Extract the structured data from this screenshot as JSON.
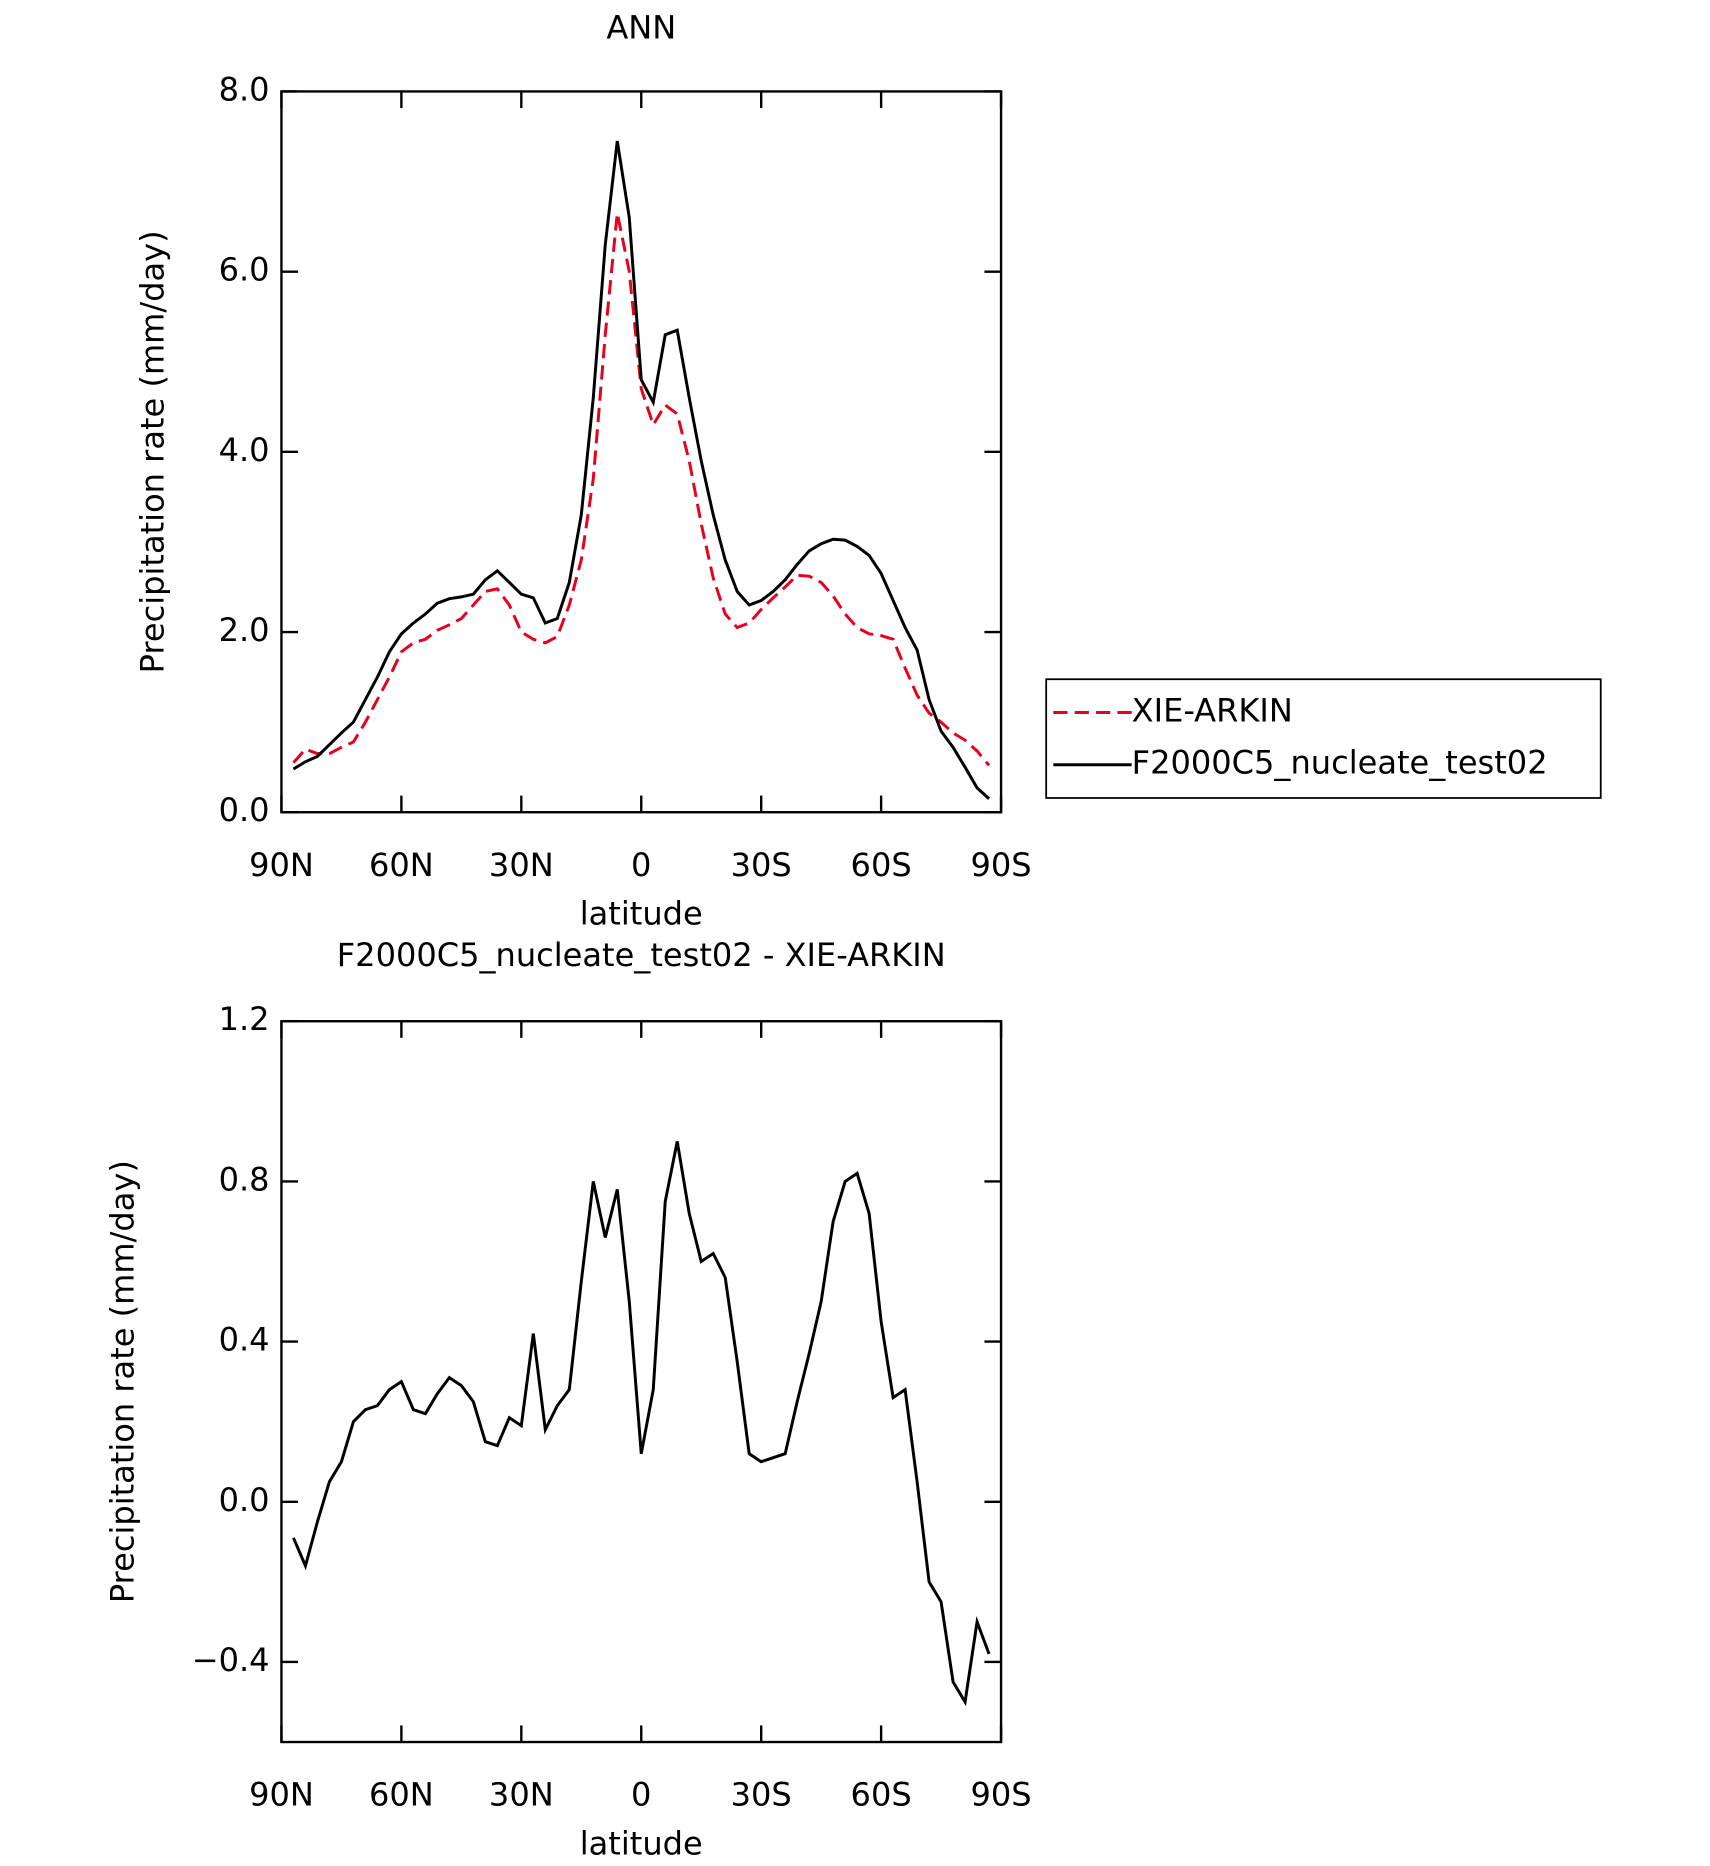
{
  "chart_data": [
    {
      "type": "line",
      "title": "ANN",
      "xlabel": "latitude",
      "ylabel": "Precipitation rate (mm/day)",
      "x": [
        87,
        84,
        81,
        78,
        75,
        72,
        69,
        66,
        63,
        60,
        57,
        54,
        51,
        48,
        45,
        42,
        39,
        36,
        33,
        30,
        27,
        24,
        21,
        18,
        15,
        12,
        9,
        6,
        3,
        0,
        -3,
        -6,
        -9,
        -12,
        -15,
        -18,
        -21,
        -24,
        -27,
        -30,
        -33,
        -36,
        -39,
        -42,
        -45,
        -48,
        -51,
        -54,
        -57,
        -60,
        -63,
        -66,
        -69,
        -72,
        -75,
        -78,
        -81,
        -84,
        -87
      ],
      "series": [
        {
          "name": "XIE-ARKIN",
          "color": "#e8001c",
          "line_style": "dashed",
          "values": [
            0.55,
            0.7,
            0.65,
            0.65,
            0.72,
            0.78,
            1.0,
            1.25,
            1.5,
            1.78,
            1.88,
            1.92,
            2.02,
            2.08,
            2.15,
            2.3,
            2.45,
            2.48,
            2.3,
            2.0,
            1.92,
            1.88,
            1.95,
            2.3,
            2.8,
            3.7,
            5.3,
            6.65,
            6.0,
            4.7,
            4.3,
            4.52,
            4.42,
            3.9,
            3.2,
            2.6,
            2.2,
            2.05,
            2.1,
            2.25,
            2.38,
            2.5,
            2.63,
            2.62,
            2.55,
            2.4,
            2.2,
            2.05,
            1.98,
            1.96,
            1.92,
            1.6,
            1.3,
            1.1,
            1.0,
            0.88,
            0.8,
            0.68,
            0.52
          ]
        },
        {
          "name": "F2000C5_nucleate_test02",
          "color": "#000000",
          "line_style": "solid",
          "values": [
            0.48,
            0.56,
            0.62,
            0.75,
            0.88,
            1.0,
            1.25,
            1.5,
            1.78,
            1.98,
            2.1,
            2.2,
            2.32,
            2.37,
            2.39,
            2.42,
            2.58,
            2.68,
            2.55,
            2.42,
            2.38,
            2.1,
            2.15,
            2.55,
            3.3,
            4.6,
            6.3,
            7.45,
            6.6,
            4.8,
            4.55,
            5.3,
            5.35,
            4.6,
            3.9,
            3.3,
            2.8,
            2.45,
            2.3,
            2.35,
            2.45,
            2.58,
            2.75,
            2.9,
            2.98,
            3.03,
            3.02,
            2.95,
            2.85,
            2.65,
            2.35,
            2.05,
            1.8,
            1.25,
            0.9,
            0.72,
            0.5,
            0.27,
            0.15
          ]
        }
      ],
      "xlim": [
        90,
        -90
      ],
      "xticks": [
        {
          "value": 90,
          "label": "90N"
        },
        {
          "value": 60,
          "label": "60N"
        },
        {
          "value": 30,
          "label": "30N"
        },
        0,
        {
          "value": -30,
          "label": "30S"
        },
        {
          "value": -60,
          "label": "60S"
        },
        {
          "value": -90,
          "label": "90S"
        }
      ],
      "ylim": [
        0,
        8
      ],
      "yticks": [
        {
          "value": 0,
          "label": "0.0"
        },
        {
          "value": 2,
          "label": "2.0"
        },
        {
          "value": 4,
          "label": "4.0"
        },
        {
          "value": 6,
          "label": "6.0"
        },
        {
          "value": 8,
          "label": "8.0"
        }
      ],
      "legend": "right"
    },
    {
      "type": "line",
      "title": "F2000C5_nucleate_test02 - XIE-ARKIN",
      "xlabel": "latitude",
      "ylabel": "Precipitation rate (mm/day)",
      "x": [
        87,
        84,
        81,
        78,
        75,
        72,
        69,
        66,
        63,
        60,
        57,
        54,
        51,
        48,
        45,
        42,
        39,
        36,
        33,
        30,
        27,
        24,
        21,
        18,
        15,
        12,
        9,
        6,
        3,
        0,
        -3,
        -6,
        -9,
        -12,
        -15,
        -18,
        -21,
        -24,
        -27,
        -30,
        -33,
        -36,
        -39,
        -42,
        -45,
        -48,
        -51,
        -54,
        -57,
        -60,
        -63,
        -66,
        -69,
        -72,
        -75,
        -78,
        -81,
        -84,
        -87
      ],
      "color": "#000000",
      "values": [
        -0.09,
        -0.16,
        -0.05,
        0.05,
        0.1,
        0.2,
        0.23,
        0.24,
        0.28,
        0.3,
        0.23,
        0.22,
        0.27,
        0.31,
        0.29,
        0.25,
        0.15,
        0.14,
        0.21,
        0.19,
        0.42,
        0.18,
        0.24,
        0.28,
        0.55,
        0.8,
        0.66,
        0.78,
        0.5,
        0.12,
        0.28,
        0.75,
        0.9,
        0.72,
        0.6,
        0.62,
        0.56,
        0.35,
        0.12,
        0.1,
        0.11,
        0.12,
        0.25,
        0.37,
        0.5,
        0.7,
        0.8,
        0.82,
        0.72,
        0.45,
        0.26,
        0.28,
        0.05,
        -0.2,
        -0.25,
        -0.45,
        -0.5,
        -0.3,
        -0.38
      ],
      "xlim": [
        90,
        -90
      ],
      "xticks": [
        {
          "value": 90,
          "label": "90N"
        },
        {
          "value": 60,
          "label": "60N"
        },
        {
          "value": 30,
          "label": "30N"
        },
        0,
        {
          "value": -30,
          "label": "30S"
        },
        {
          "value": -60,
          "label": "60S"
        },
        {
          "value": -90,
          "label": "90S"
        }
      ],
      "ylim": [
        -0.6,
        1.2
      ],
      "yticks": [
        {
          "value": -0.4,
          "label": "−0.4"
        },
        {
          "value": 0,
          "label": "0.0"
        },
        {
          "value": 0.4,
          "label": "0.4"
        },
        {
          "value": 0.8,
          "label": "0.8"
        },
        {
          "value": 1.2,
          "label": "1.2"
        }
      ]
    }
  ]
}
